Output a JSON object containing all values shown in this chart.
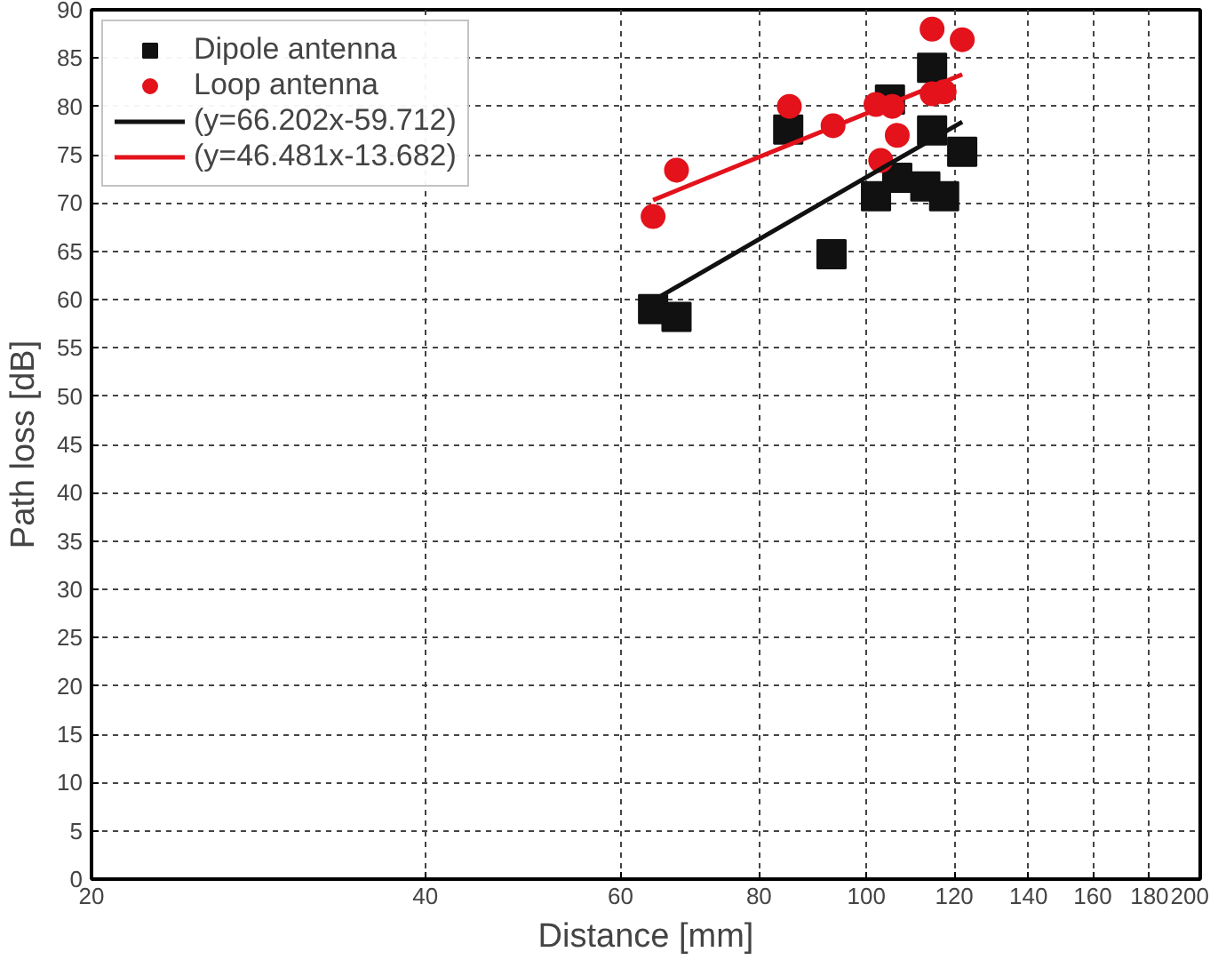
{
  "chart_data": {
    "type": "scatter",
    "xlabel": "Distance [mm]",
    "ylabel": "Path loss [dB]",
    "log": "x",
    "xlim": [
      20,
      200
    ],
    "ylim": [
      0,
      90
    ],
    "xticks": [
      20,
      40,
      60,
      80,
      100,
      120,
      140,
      160,
      180,
      200
    ],
    "yticks": [
      0,
      5,
      10,
      15,
      20,
      25,
      30,
      35,
      40,
      45,
      50,
      55,
      60,
      65,
      70,
      75,
      80,
      85,
      90
    ],
    "grid": true,
    "legend": "top left",
    "series": [
      {
        "name": "Dipole antenna",
        "color": "#111111",
        "marker": "square",
        "x": [
          64.2,
          67.4,
          85,
          93,
          102,
          106.6,
          105,
          113,
          117.5,
          114.6,
          114.6,
          122
        ],
        "values": [
          59.0,
          58.2,
          77.6,
          64.7,
          70.7,
          72.6,
          80.7,
          71.7,
          70.7,
          84,
          77.5,
          75.3
        ]
      },
      {
        "name": "Loop antenna",
        "color": "#e3121b",
        "marker": "circle",
        "x": [
          64.2,
          67.4,
          85.2,
          93.3,
          102,
          105.5,
          106.6,
          103,
          114.6,
          122,
          114.6,
          117.5
        ],
        "values": [
          68.6,
          73.4,
          80,
          78,
          80.2,
          80,
          77,
          74.4,
          88,
          86.9,
          81.3,
          81.5
        ]
      },
      {
        "name": "(y=66.202x-59.712)",
        "type": "line",
        "color": "#111111",
        "line_style": "solid",
        "x": [
          64.2,
          122
        ],
        "values": [
          59.9,
          78.4
        ]
      },
      {
        "name": "(y=46.481x-13.682)",
        "type": "line",
        "color": "#e3121b",
        "line_style": "solid",
        "x": [
          64.2,
          122
        ],
        "values": [
          70.3,
          83.3
        ]
      }
    ]
  }
}
